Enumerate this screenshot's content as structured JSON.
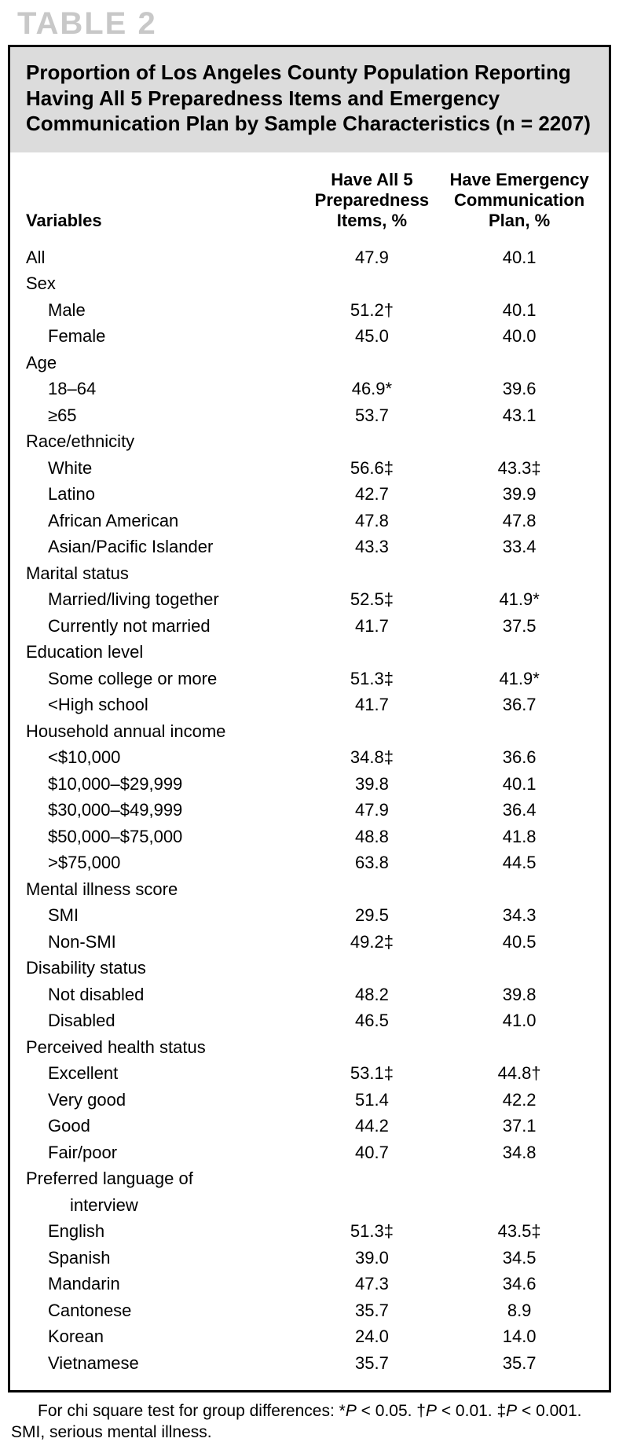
{
  "table_label": "TABLE 2",
  "title": "Proportion of Los Angeles County Population Reporting Having All 5 Preparedness Items and Emergency Communication Plan by Sample Characteristics (n = 2207)",
  "columns": {
    "variables": "Variables",
    "col1_line1": "Have All 5",
    "col1_line2": "Preparedness",
    "col1_line3": "Items, %",
    "col2_line1": "Have Emergency",
    "col2_line2": "Communication",
    "col2_line3": "Plan, %"
  },
  "rows": [
    {
      "label": "All",
      "indent": 0,
      "v1": "47.9",
      "v2": "40.1"
    },
    {
      "label": "Sex",
      "indent": 0,
      "v1": "",
      "v2": ""
    },
    {
      "label": "Male",
      "indent": 1,
      "v1": "51.2†",
      "v2": "40.1"
    },
    {
      "label": "Female",
      "indent": 1,
      "v1": "45.0",
      "v2": "40.0"
    },
    {
      "label": "Age",
      "indent": 0,
      "v1": "",
      "v2": ""
    },
    {
      "label": "18–64",
      "indent": 1,
      "v1": "46.9*",
      "v2": "39.6"
    },
    {
      "label": "≥65",
      "indent": 1,
      "v1": "53.7",
      "v2": "43.1"
    },
    {
      "label": "Race/ethnicity",
      "indent": 0,
      "v1": "",
      "v2": ""
    },
    {
      "label": "White",
      "indent": 1,
      "v1": "56.6‡",
      "v2": "43.3‡"
    },
    {
      "label": "Latino",
      "indent": 1,
      "v1": "42.7",
      "v2": "39.9"
    },
    {
      "label": "African American",
      "indent": 1,
      "v1": "47.8",
      "v2": "47.8"
    },
    {
      "label": "Asian/Pacific Islander",
      "indent": 1,
      "v1": "43.3",
      "v2": "33.4"
    },
    {
      "label": "Marital status",
      "indent": 0,
      "v1": "",
      "v2": ""
    },
    {
      "label": "Married/living together",
      "indent": 1,
      "v1": "52.5‡",
      "v2": "41.9*"
    },
    {
      "label": "Currently not married",
      "indent": 1,
      "v1": "41.7",
      "v2": "37.5"
    },
    {
      "label": "Education level",
      "indent": 0,
      "v1": "",
      "v2": ""
    },
    {
      "label": "Some college or more",
      "indent": 1,
      "v1": "51.3‡",
      "v2": "41.9*"
    },
    {
      "label": "<High school",
      "indent": 1,
      "v1": "41.7",
      "v2": "36.7"
    },
    {
      "label": "Household annual income",
      "indent": 0,
      "v1": "",
      "v2": ""
    },
    {
      "label": "<$10,000",
      "indent": 1,
      "v1": "34.8‡",
      "v2": "36.6"
    },
    {
      "label": "$10,000–$29,999",
      "indent": 1,
      "v1": "39.8",
      "v2": "40.1"
    },
    {
      "label": "$30,000–$49,999",
      "indent": 1,
      "v1": "47.9",
      "v2": "36.4"
    },
    {
      "label": "$50,000–$75,000",
      "indent": 1,
      "v1": "48.8",
      "v2": "41.8"
    },
    {
      "label": ">$75,000",
      "indent": 1,
      "v1": "63.8",
      "v2": "44.5"
    },
    {
      "label": "Mental illness score",
      "indent": 0,
      "v1": "",
      "v2": ""
    },
    {
      "label": "SMI",
      "indent": 1,
      "v1": "29.5",
      "v2": "34.3"
    },
    {
      "label": "Non-SMI",
      "indent": 1,
      "v1": "49.2‡",
      "v2": "40.5"
    },
    {
      "label": "Disability status",
      "indent": 0,
      "v1": "",
      "v2": ""
    },
    {
      "label": "Not disabled",
      "indent": 1,
      "v1": "48.2",
      "v2": "39.8"
    },
    {
      "label": "Disabled",
      "indent": 1,
      "v1": "46.5",
      "v2": "41.0"
    },
    {
      "label": "Perceived health status",
      "indent": 0,
      "v1": "",
      "v2": ""
    },
    {
      "label": "Excellent",
      "indent": 1,
      "v1": "53.1‡",
      "v2": "44.8†"
    },
    {
      "label": "Very good",
      "indent": 1,
      "v1": "51.4",
      "v2": "42.2"
    },
    {
      "label": "Good",
      "indent": 1,
      "v1": "44.2",
      "v2": "37.1"
    },
    {
      "label": "Fair/poor",
      "indent": 1,
      "v1": "40.7",
      "v2": "34.8"
    },
    {
      "label": "Preferred language of",
      "indent": 0,
      "v1": "",
      "v2": ""
    },
    {
      "label": "interview",
      "indent": 2,
      "v1": "",
      "v2": ""
    },
    {
      "label": "English",
      "indent": 1,
      "v1": "51.3‡",
      "v2": "43.5‡"
    },
    {
      "label": "Spanish",
      "indent": 1,
      "v1": "39.0",
      "v2": "34.5"
    },
    {
      "label": "Mandarin",
      "indent": 1,
      "v1": "47.3",
      "v2": "34.6"
    },
    {
      "label": "Cantonese",
      "indent": 1,
      "v1": "35.7",
      "v2": "  8.9"
    },
    {
      "label": "Korean",
      "indent": 1,
      "v1": "24.0",
      "v2": "14.0"
    },
    {
      "label": "Vietnamese",
      "indent": 1,
      "v1": "35.7",
      "v2": "35.7"
    }
  ],
  "footnote": {
    "text1": "For chi square test for group differences: *",
    "p1": "P",
    "text2": " < 0.05. †",
    "p2": "P",
    "text3": " < 0.01. ‡",
    "p3": "P",
    "text4": " < 0.001. SMI, serious mental illness."
  },
  "styles": {
    "label_color": "#c8c8c8",
    "title_bg": "#dcdcdc",
    "border_color": "#000000",
    "text_color": "#000000",
    "bg_color": "#ffffff"
  }
}
